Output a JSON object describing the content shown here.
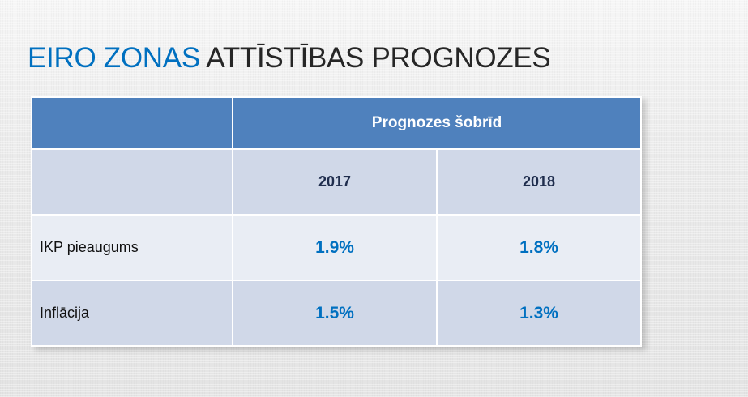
{
  "title": {
    "accent": "EIRO ZONAS",
    "rest": "ATTĪSTĪBAS PROGNOZES"
  },
  "table": {
    "group_header": "Prognozes šobrīd",
    "years": [
      "2017",
      "2018"
    ],
    "rows": [
      {
        "label": "IKP pieaugums",
        "values": [
          "1.9%",
          "1.8%"
        ]
      },
      {
        "label": "Inflācija",
        "values": [
          "1.5%",
          "1.3%"
        ]
      }
    ]
  },
  "colors": {
    "accent": "#0070c0",
    "header_bg": "#4f81bd",
    "row_dark": "#d0d8e8",
    "row_light": "#e9edf4"
  }
}
